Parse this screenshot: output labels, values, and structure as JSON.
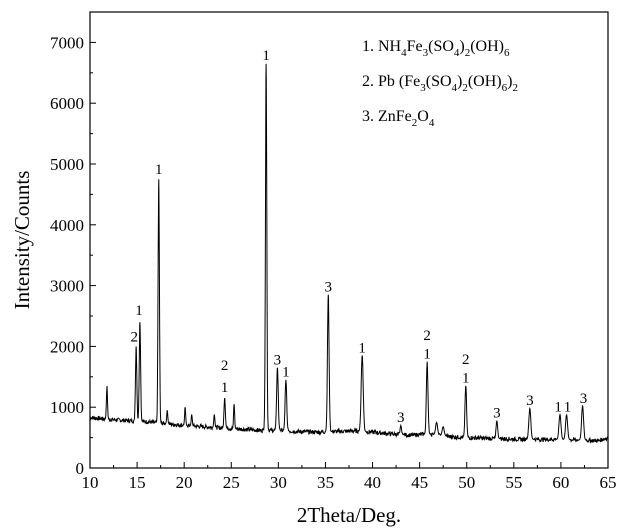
{
  "chart_data": {
    "type": "line",
    "title": "",
    "xlabel": "2Theta/Deg.",
    "ylabel": "Intensity/Counts",
    "xlim": [
      10,
      65
    ],
    "ylim": [
      0,
      7500
    ],
    "x_ticks": [
      10,
      15,
      20,
      25,
      30,
      35,
      40,
      45,
      50,
      55,
      60,
      65
    ],
    "y_ticks": [
      0,
      1000,
      2000,
      3000,
      4000,
      5000,
      6000,
      7000
    ],
    "grid": false,
    "legend_position": "top-right",
    "legend": [
      {
        "prefix": "1. ",
        "parts": [
          [
            "NH",
            ""
          ],
          [
            "4",
            "sub"
          ],
          [
            "Fe",
            ""
          ],
          [
            "3",
            "sub"
          ],
          [
            "(SO",
            ""
          ],
          [
            "4",
            "sub"
          ],
          [
            ")",
            ""
          ],
          [
            "2",
            "sub"
          ],
          [
            "(OH)",
            ""
          ],
          [
            "6",
            "sub"
          ]
        ]
      },
      {
        "prefix": "2. ",
        "parts": [
          [
            "Pb (Fe",
            ""
          ],
          [
            "3",
            "sub"
          ],
          [
            "(SO",
            ""
          ],
          [
            "4",
            "sub"
          ],
          [
            ")",
            ""
          ],
          [
            "2",
            "sub"
          ],
          [
            "(OH)",
            ""
          ],
          [
            "6",
            "sub"
          ],
          [
            ")",
            ""
          ],
          [
            "2",
            "sub"
          ]
        ]
      },
      {
        "prefix": "3. ",
        "parts": [
          [
            "ZnFe",
            ""
          ],
          [
            "2",
            "sub"
          ],
          [
            "O",
            ""
          ],
          [
            "4",
            "sub"
          ]
        ]
      }
    ],
    "baseline": [
      [
        10,
        830
      ],
      [
        12,
        800
      ],
      [
        14,
        780
      ],
      [
        16,
        760
      ],
      [
        18,
        730
      ],
      [
        20,
        700
      ],
      [
        22,
        680
      ],
      [
        24,
        660
      ],
      [
        26,
        640
      ],
      [
        28,
        620
      ],
      [
        30,
        620
      ],
      [
        32,
        600
      ],
      [
        34,
        590
      ],
      [
        36,
        600
      ],
      [
        38,
        610
      ],
      [
        40,
        590
      ],
      [
        42,
        560
      ],
      [
        44,
        540
      ],
      [
        46,
        560
      ],
      [
        48,
        520
      ],
      [
        50,
        500
      ],
      [
        52,
        490
      ],
      [
        54,
        480
      ],
      [
        56,
        470
      ],
      [
        58,
        470
      ],
      [
        60,
        470
      ],
      [
        62,
        460
      ],
      [
        64,
        450
      ],
      [
        65,
        500
      ]
    ],
    "peaks": [
      {
        "x": 11.8,
        "y": 1350,
        "w": 0.08
      },
      {
        "x": 14.9,
        "y": 2000,
        "w": 0.1
      },
      {
        "x": 15.3,
        "y": 2400,
        "w": 0.1
      },
      {
        "x": 17.3,
        "y": 4750,
        "w": 0.1
      },
      {
        "x": 18.2,
        "y": 950,
        "w": 0.08
      },
      {
        "x": 20.1,
        "y": 1000,
        "w": 0.08
      },
      {
        "x": 20.8,
        "y": 880,
        "w": 0.08
      },
      {
        "x": 23.2,
        "y": 880,
        "w": 0.08
      },
      {
        "x": 24.3,
        "y": 1150,
        "w": 0.1
      },
      {
        "x": 25.3,
        "y": 1050,
        "w": 0.08
      },
      {
        "x": 28.7,
        "y": 6650,
        "w": 0.1
      },
      {
        "x": 29.9,
        "y": 1650,
        "w": 0.12
      },
      {
        "x": 30.8,
        "y": 1450,
        "w": 0.12
      },
      {
        "x": 35.3,
        "y": 2850,
        "w": 0.12
      },
      {
        "x": 38.9,
        "y": 1850,
        "w": 0.15
      },
      {
        "x": 43.0,
        "y": 700,
        "w": 0.1
      },
      {
        "x": 45.8,
        "y": 1750,
        "w": 0.12
      },
      {
        "x": 46.8,
        "y": 750,
        "w": 0.15
      },
      {
        "x": 47.5,
        "y": 680,
        "w": 0.15
      },
      {
        "x": 49.9,
        "y": 1350,
        "w": 0.12
      },
      {
        "x": 53.2,
        "y": 780,
        "w": 0.12
      },
      {
        "x": 56.7,
        "y": 980,
        "w": 0.15
      },
      {
        "x": 59.9,
        "y": 880,
        "w": 0.15
      },
      {
        "x": 60.6,
        "y": 880,
        "w": 0.15
      },
      {
        "x": 62.3,
        "y": 1020,
        "w": 0.15
      }
    ],
    "peak_labels": [
      {
        "text": "2",
        "x": 14.7,
        "y": 2050
      },
      {
        "text": "1",
        "x": 15.2,
        "y": 2480
      },
      {
        "text": "1",
        "x": 17.3,
        "y": 4800
      },
      {
        "text": "2",
        "x": 24.3,
        "y": 1580
      },
      {
        "text": "1",
        "x": 24.3,
        "y": 1220
      },
      {
        "text": "1",
        "x": 28.7,
        "y": 6680
      },
      {
        "text": "3",
        "x": 29.9,
        "y": 1670
      },
      {
        "text": "1",
        "x": 30.8,
        "y": 1470
      },
      {
        "text": "3",
        "x": 35.3,
        "y": 2870
      },
      {
        "text": "1",
        "x": 38.9,
        "y": 1870
      },
      {
        "text": "3",
        "x": 43.0,
        "y": 720
      },
      {
        "text": "2",
        "x": 45.8,
        "y": 2070
      },
      {
        "text": "1",
        "x": 45.8,
        "y": 1770
      },
      {
        "text": "2",
        "x": 49.9,
        "y": 1680
      },
      {
        "text": "1",
        "x": 49.9,
        "y": 1370
      },
      {
        "text": "3",
        "x": 53.2,
        "y": 800
      },
      {
        "text": "3",
        "x": 56.7,
        "y": 1000
      },
      {
        "text": "1",
        "x": 59.7,
        "y": 900
      },
      {
        "text": "1",
        "x": 60.7,
        "y": 900
      },
      {
        "text": "3",
        "x": 62.4,
        "y": 1040
      }
    ]
  }
}
